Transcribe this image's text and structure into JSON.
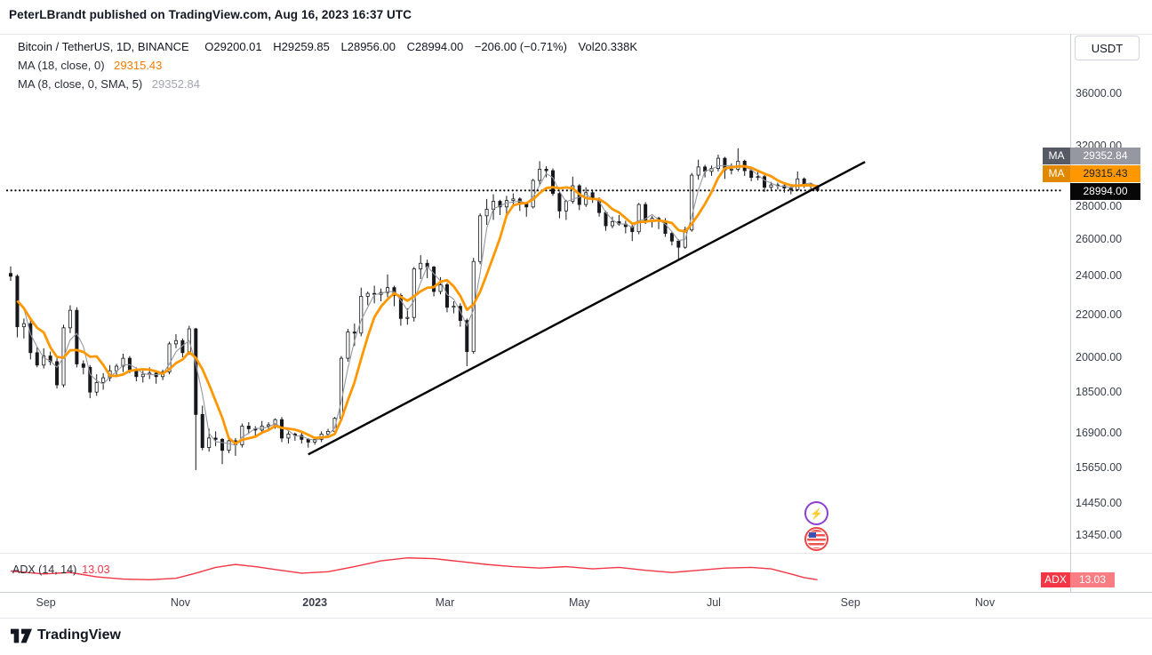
{
  "header": {
    "text": "PeterLBrandt published on TradingView.com, Aug 16, 2023 16:37 UTC"
  },
  "legend": {
    "symbol": "Bitcoin / TetherUS, 1D, BINANCE",
    "o": "O29200.01",
    "h": "H29259.85",
    "l": "L28956.00",
    "c": "C28994.00",
    "change": "−206.00 (−0.71%)",
    "volume": "Vol20.338K",
    "ma18_label": "MA (18, close, 0)",
    "ma18_value": "29315.43",
    "ma8_label": "MA (8, close, 0, SMA, 5)",
    "ma8_value": "29352.84"
  },
  "currency_button": {
    "label": "USDT"
  },
  "price_scale_badges": {
    "ma_gray_tag": "MA",
    "ma_gray_value": "29352.84",
    "ma_orange_tag": "MA",
    "ma_orange_value": "29315.43",
    "last_value": "28994.00"
  },
  "adx_pane": {
    "title": "ADX (14, 14)",
    "value": "13.03",
    "badge_tag": "ADX",
    "badge_value": "13.03"
  },
  "logo": {
    "label": "TradingView"
  },
  "colors": {
    "up_down_candle": "#16181d",
    "ma18": "#FF9800",
    "ma8": "#9598a1",
    "adx": "#F23645",
    "last_badge": "#070707"
  },
  "chart_data": {
    "type": "candlestick",
    "title": "Bitcoin / TetherUS, 1D, BINANCE",
    "y_axis": {
      "scale": "log",
      "ticks": [
        36000,
        32000,
        28000,
        26000,
        24000,
        22000,
        20000,
        18500,
        16900,
        15650,
        14450,
        13450
      ]
    },
    "x_axis": {
      "labels": [
        {
          "label": "Sep",
          "i": 5.33
        },
        {
          "label": "Nov",
          "i": 25.67
        },
        {
          "label": "2023",
          "i": 46,
          "bold": true
        },
        {
          "label": "Mar",
          "i": 65.67
        },
        {
          "label": "May",
          "i": 86
        },
        {
          "label": "Jul",
          "i": 106.33
        },
        {
          "label": "Sep",
          "i": 127
        },
        {
          "label": "Nov",
          "i": 147.33
        }
      ]
    },
    "current": {
      "open": 29200.01,
      "high": 29259.85,
      "low": 28956.0,
      "close": 28994.0,
      "change": -206.0,
      "change_pct": -0.71,
      "volume": "20.338K"
    },
    "candle_interval_days": 3,
    "candles": [
      [
        24100,
        24480,
        23700,
        23950
      ],
      [
        23950,
        24050,
        20900,
        21400
      ],
      [
        21400,
        21800,
        20850,
        21550
      ],
      [
        21550,
        21700,
        19900,
        20200
      ],
      [
        20200,
        20450,
        19550,
        19650
      ],
      [
        19650,
        20400,
        19500,
        20050
      ],
      [
        20050,
        20250,
        19650,
        19800
      ],
      [
        19800,
        19950,
        18650,
        18800
      ],
      [
        18800,
        21500,
        18700,
        21350
      ],
      [
        21350,
        22450,
        21100,
        22200
      ],
      [
        22200,
        22350,
        19550,
        19700
      ],
      [
        19700,
        19850,
        19250,
        19550
      ],
      [
        19550,
        19650,
        18250,
        18500
      ],
      [
        18500,
        19250,
        18350,
        18900
      ],
      [
        18900,
        19300,
        18600,
        19100
      ],
      [
        19100,
        19650,
        18950,
        19400
      ],
      [
        19400,
        19700,
        19150,
        19600
      ],
      [
        19600,
        20150,
        19350,
        19950
      ],
      [
        19950,
        20050,
        19300,
        19450
      ],
      [
        19450,
        19550,
        18950,
        19150
      ],
      [
        19150,
        19400,
        18900,
        19250
      ],
      [
        19250,
        19550,
        19050,
        19300
      ],
      [
        19300,
        19400,
        18850,
        19150
      ],
      [
        19150,
        19450,
        19000,
        19350
      ],
      [
        19350,
        20700,
        19250,
        20600
      ],
      [
        20600,
        21050,
        20400,
        20750
      ],
      [
        20750,
        20850,
        20000,
        20200
      ],
      [
        20200,
        21450,
        20100,
        21300
      ],
      [
        21300,
        21350,
        15550,
        17600
      ],
      [
        17600,
        17950,
        16250,
        16350
      ],
      [
        16350,
        17050,
        16200,
        16700
      ],
      [
        16700,
        16950,
        16400,
        16650
      ],
      [
        16650,
        16700,
        15760,
        16250
      ],
      [
        16250,
        16750,
        16150,
        16600
      ],
      [
        16600,
        16700,
        16050,
        16450
      ],
      [
        16450,
        17250,
        16350,
        17150
      ],
      [
        17150,
        17300,
        16850,
        17050
      ],
      [
        17050,
        17150,
        16750,
        17000
      ],
      [
        17000,
        17350,
        16900,
        17150
      ],
      [
        17150,
        17300,
        17000,
        17200
      ],
      [
        17200,
        17450,
        17050,
        17400
      ],
      [
        17400,
        17500,
        16550,
        16700
      ],
      [
        16700,
        16950,
        16500,
        16850
      ],
      [
        16850,
        16900,
        16600,
        16800
      ],
      [
        16800,
        16900,
        16500,
        16650
      ],
      [
        16650,
        16700,
        16350,
        16550
      ],
      [
        16550,
        16750,
        16450,
        16650
      ],
      [
        16650,
        16950,
        16550,
        16850
      ],
      [
        16850,
        17050,
        16700,
        16950
      ],
      [
        16950,
        17500,
        16850,
        17450
      ],
      [
        17450,
        20050,
        17350,
        19950
      ],
      [
        19950,
        21300,
        19800,
        21150
      ],
      [
        21150,
        21550,
        20500,
        21100
      ],
      [
        21100,
        23350,
        20950,
        22900
      ],
      [
        22900,
        23150,
        22450,
        23050
      ],
      [
        23050,
        23450,
        22550,
        23000
      ],
      [
        23000,
        23300,
        22650,
        23100
      ],
      [
        23100,
        24050,
        22850,
        23350
      ],
      [
        23350,
        23450,
        22400,
        22950
      ],
      [
        22950,
        23050,
        21450,
        21800
      ],
      [
        21800,
        22300,
        21500,
        21850
      ],
      [
        21850,
        24450,
        21650,
        24350
      ],
      [
        24350,
        25100,
        23800,
        24650
      ],
      [
        24650,
        24850,
        23850,
        24450
      ],
      [
        24450,
        24500,
        22900,
        23150
      ],
      [
        23150,
        23900,
        23000,
        23500
      ],
      [
        23500,
        23600,
        22100,
        22350
      ],
      [
        22350,
        22650,
        22050,
        22400
      ],
      [
        22400,
        22550,
        21400,
        21700
      ],
      [
        21700,
        21800,
        19600,
        20250
      ],
      [
        20250,
        24950,
        20150,
        24750
      ],
      [
        24750,
        27550,
        24600,
        27400
      ],
      [
        27400,
        28450,
        26850,
        27800
      ],
      [
        27800,
        28750,
        27150,
        28300
      ],
      [
        28300,
        28400,
        27450,
        27950
      ],
      [
        27950,
        28650,
        27300,
        28350
      ],
      [
        28350,
        28800,
        28000,
        28450
      ],
      [
        28450,
        28550,
        27700,
        28150
      ],
      [
        28150,
        28250,
        27350,
        27950
      ],
      [
        27950,
        29750,
        27850,
        29650
      ],
      [
        29650,
        30950,
        29300,
        30400
      ],
      [
        30400,
        30600,
        29850,
        30300
      ],
      [
        30300,
        30450,
        28650,
        28800
      ],
      [
        28800,
        28900,
        27250,
        27700
      ],
      [
        27700,
        28400,
        27150,
        28300
      ],
      [
        28300,
        29900,
        28150,
        29300
      ],
      [
        29300,
        29400,
        27750,
        28100
      ],
      [
        28100,
        29200,
        27950,
        28850
      ],
      [
        28850,
        29000,
        28200,
        28450
      ],
      [
        28450,
        28550,
        27350,
        27600
      ],
      [
        27600,
        27700,
        26500,
        26800
      ],
      [
        26800,
        27350,
        26650,
        27050
      ],
      [
        27050,
        27450,
        26800,
        26900
      ],
      [
        26900,
        27100,
        26350,
        26750
      ],
      [
        26750,
        26850,
        25900,
        26450
      ],
      [
        26450,
        28200,
        26300,
        28100
      ],
      [
        28100,
        28250,
        26900,
        27100
      ],
      [
        27100,
        27400,
        26700,
        27250
      ],
      [
        27250,
        27350,
        26600,
        27100
      ],
      [
        27100,
        27250,
        26150,
        26350
      ],
      [
        26350,
        26450,
        25650,
        25900
      ],
      [
        25900,
        26000,
        24800,
        25550
      ],
      [
        25550,
        26750,
        25450,
        26550
      ],
      [
        26550,
        30150,
        26450,
        30000
      ],
      [
        30000,
        31050,
        29700,
        30550
      ],
      [
        30550,
        30700,
        29850,
        30250
      ],
      [
        30250,
        30650,
        29950,
        30450
      ],
      [
        30450,
        31400,
        30250,
        31150
      ],
      [
        31150,
        31250,
        29750,
        30350
      ],
      [
        30350,
        30800,
        30050,
        30400
      ],
      [
        30400,
        31850,
        30250,
        30950
      ],
      [
        30950,
        31050,
        29950,
        30300
      ],
      [
        30300,
        30450,
        29600,
        29850
      ],
      [
        29850,
        30250,
        29650,
        29900
      ],
      [
        29900,
        30000,
        28900,
        29200
      ],
      [
        29200,
        29550,
        29050,
        29350
      ],
      [
        29350,
        29500,
        29050,
        29300
      ],
      [
        29300,
        29450,
        28850,
        29150
      ],
      [
        29150,
        29300,
        28750,
        29050
      ],
      [
        29050,
        30250,
        28950,
        29750
      ],
      [
        29750,
        29850,
        29150,
        29400
      ],
      [
        29400,
        29500,
        29050,
        29300
      ],
      [
        29300,
        29350,
        28900,
        28994
      ]
    ],
    "overlays": {
      "ma18": {
        "color": "#FF9800",
        "window_candles": 6,
        "last": 29315.43
      },
      "ma8_sma5": {
        "color": "#9598a1",
        "window_candles": 3,
        "last": 29352.84
      },
      "trendline": {
        "from": {
          "i": 45,
          "price": 16100
        },
        "to": {
          "i": 129.2,
          "price": 30900
        },
        "color": "#000000"
      },
      "dotted_level": 28994.0
    },
    "adx": {
      "label": "ADX (14, 14)",
      "last": 13.03,
      "color": "#F23645",
      "range": [
        0,
        50
      ],
      "points": [
        [
          0,
          25
        ],
        [
          5,
          21
        ],
        [
          9,
          23
        ],
        [
          13,
          17
        ],
        [
          17,
          14
        ],
        [
          21,
          13
        ],
        [
          25,
          15
        ],
        [
          28,
          22
        ],
        [
          31,
          30
        ],
        [
          34,
          34
        ],
        [
          37,
          31
        ],
        [
          40,
          27
        ],
        [
          44,
          22
        ],
        [
          48,
          24
        ],
        [
          52,
          31
        ],
        [
          56,
          39
        ],
        [
          60,
          43
        ],
        [
          64,
          42
        ],
        [
          68,
          38
        ],
        [
          72,
          34
        ],
        [
          76,
          31
        ],
        [
          80,
          29
        ],
        [
          84,
          31
        ],
        [
          88,
          28
        ],
        [
          92,
          30
        ],
        [
          96,
          26
        ],
        [
          100,
          23
        ],
        [
          104,
          26
        ],
        [
          108,
          29
        ],
        [
          112,
          30
        ],
        [
          115,
          28
        ],
        [
          118,
          21
        ],
        [
          120,
          16
        ],
        [
          122,
          13
        ]
      ]
    }
  }
}
